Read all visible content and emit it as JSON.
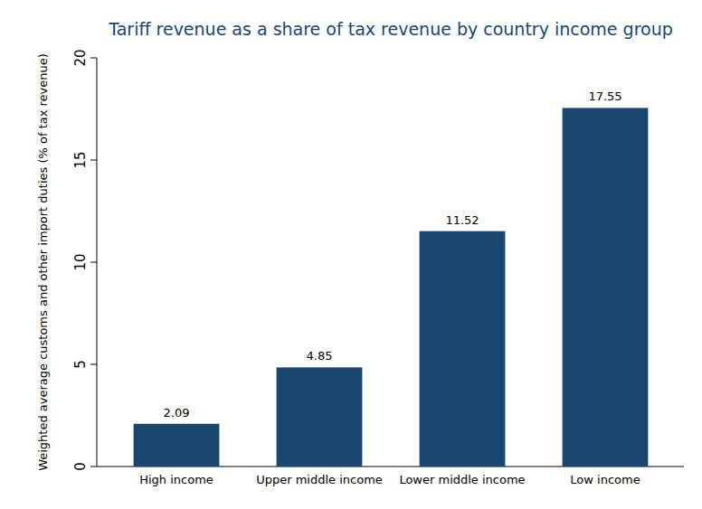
{
  "chart_data": {
    "type": "bar",
    "title": "Tariff revenue as a share of tax revenue by country income group",
    "y_label": "Weighted average customs and other import duties (% of tax revenue)",
    "categories": [
      "High income",
      "Upper middle income",
      "Lower middle income",
      "Low income"
    ],
    "values": [
      2.09,
      4.85,
      11.52,
      17.55
    ],
    "color": "#1a476f",
    "ylim": [
      0,
      20
    ],
    "yticks": [
      0,
      5,
      10,
      15,
      20
    ],
    "grid": false,
    "data_labels": true
  }
}
